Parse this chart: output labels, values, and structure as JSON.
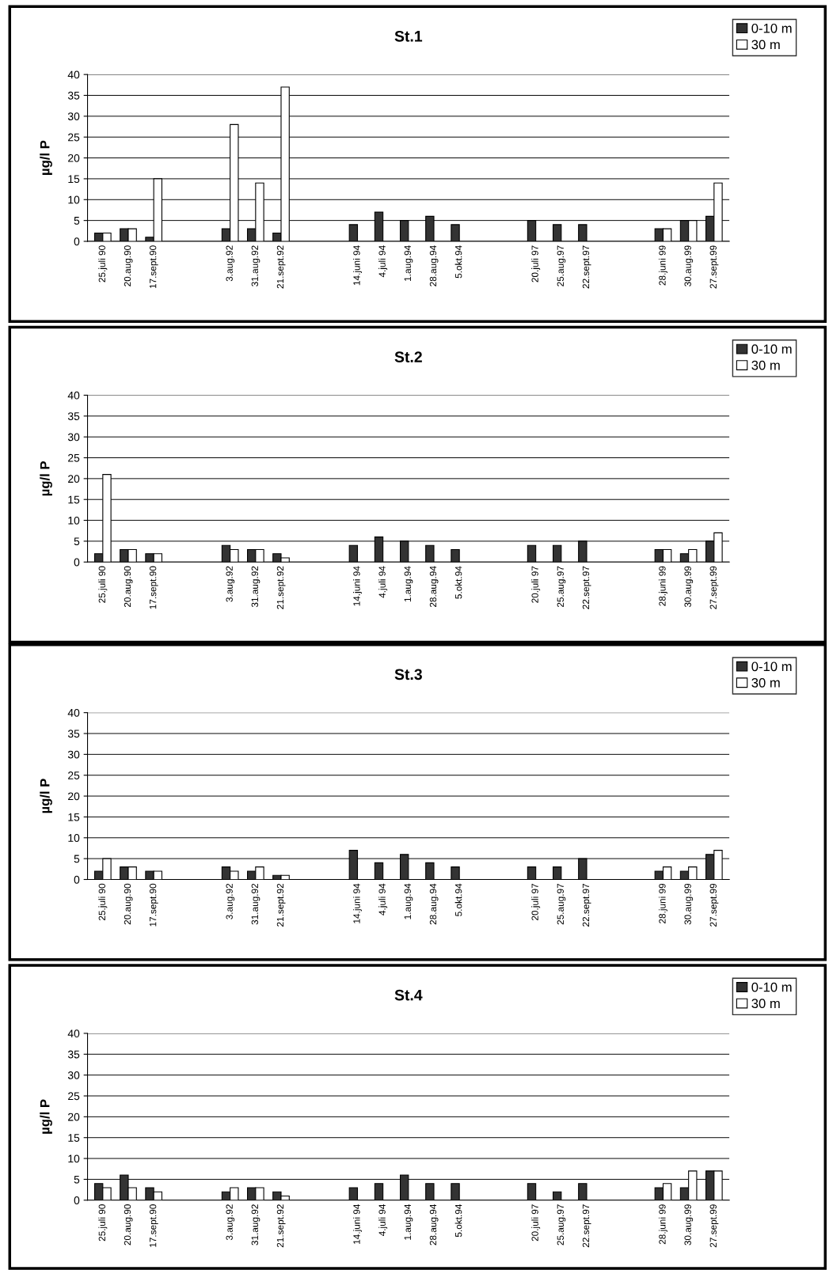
{
  "chart_data": [
    {
      "type": "bar",
      "title": "St.1",
      "ylabel": "µg/l P",
      "categories": [
        "25.juli 90",
        "20.aug.90",
        "17.sept.90",
        null,
        null,
        "3.aug.92",
        "31.aug.92",
        "21.sept.92",
        null,
        null,
        "14.juni 94",
        "4.juli 94",
        "1.aug.94",
        "28.aug.94",
        "5.okt.94",
        null,
        null,
        "20.juli 97",
        "25.aug.97",
        "22.sept.97",
        null,
        null,
        "28.juni 99",
        "30.aug.99",
        "27.sept.99"
      ],
      "ylim": [
        0,
        40
      ],
      "yticks": [
        0,
        5,
        10,
        15,
        20,
        25,
        30,
        35,
        40
      ],
      "grid": "y",
      "legend": "top right",
      "series": [
        {
          "name": "0-10 m",
          "color": "#333333",
          "values": [
            2,
            3,
            1,
            null,
            null,
            3,
            3,
            2,
            null,
            null,
            4,
            7,
            5,
            6,
            4,
            null,
            null,
            5,
            4,
            4,
            null,
            null,
            3,
            5,
            6
          ]
        },
        {
          "name": "30 m",
          "color": "#ffffff",
          "values": [
            2,
            3,
            15,
            null,
            null,
            28,
            14,
            37,
            null,
            null,
            null,
            null,
            null,
            null,
            null,
            null,
            null,
            null,
            null,
            null,
            null,
            null,
            3,
            5,
            14
          ]
        }
      ]
    },
    {
      "type": "bar",
      "title": "St.2",
      "ylabel": "µg/l P",
      "categories": [
        "25.juli 90",
        "20.aug.90",
        "17.sept.90",
        null,
        null,
        "3.aug.92",
        "31.aug.92",
        "21.sept.92",
        null,
        null,
        "14.juni 94",
        "4.juli 94",
        "1.aug.94",
        "28.aug.94",
        "5.okt.94",
        null,
        null,
        "20.juli 97",
        "25.aug.97",
        "22.sept.97",
        null,
        null,
        "28.juni 99",
        "30.aug.99",
        "27.sept.99"
      ],
      "ylim": [
        0,
        40
      ],
      "yticks": [
        0,
        5,
        10,
        15,
        20,
        25,
        30,
        35,
        40
      ],
      "grid": "y",
      "legend": "top right",
      "series": [
        {
          "name": "0-10 m",
          "color": "#333333",
          "values": [
            2,
            3,
            2,
            null,
            null,
            4,
            3,
            2,
            null,
            null,
            4,
            6,
            5,
            4,
            3,
            null,
            null,
            4,
            4,
            5,
            null,
            null,
            3,
            2,
            5
          ]
        },
        {
          "name": "30 m",
          "color": "#ffffff",
          "values": [
            21,
            3,
            2,
            null,
            null,
            3,
            3,
            1,
            null,
            null,
            null,
            null,
            null,
            null,
            null,
            null,
            null,
            null,
            null,
            null,
            null,
            null,
            3,
            3,
            7
          ]
        }
      ]
    },
    {
      "type": "bar",
      "title": "St.3",
      "ylabel": "µg/l P",
      "categories": [
        "25.juli 90",
        "20.aug.90",
        "17.sept.90",
        null,
        null,
        "3.aug.92",
        "31.aug.92",
        "21.sept.92",
        null,
        null,
        "14.juni 94",
        "4.juli 94",
        "1.aug.94",
        "28.aug.94",
        "5.okt.94",
        null,
        null,
        "20.juli 97",
        "25.aug.97",
        "22.sept.97",
        null,
        null,
        "28.juni 99",
        "30.aug.99",
        "27.sept.99"
      ],
      "ylim": [
        0,
        40
      ],
      "yticks": [
        0,
        5,
        10,
        15,
        20,
        25,
        30,
        35,
        40
      ],
      "grid": "y",
      "legend": "top right",
      "series": [
        {
          "name": "0-10 m",
          "color": "#333333",
          "values": [
            2,
            3,
            2,
            null,
            null,
            3,
            2,
            1,
            null,
            null,
            7,
            4,
            6,
            4,
            3,
            null,
            null,
            3,
            3,
            5,
            null,
            null,
            2,
            2,
            6
          ]
        },
        {
          "name": "30 m",
          "color": "#ffffff",
          "values": [
            5,
            3,
            2,
            null,
            null,
            2,
            3,
            1,
            null,
            null,
            null,
            null,
            null,
            null,
            null,
            null,
            null,
            null,
            null,
            null,
            null,
            null,
            3,
            3,
            7
          ]
        }
      ]
    },
    {
      "type": "bar",
      "title": "St.4",
      "ylabel": "µg/l P",
      "categories": [
        "25.juli 90",
        "20.aug.90",
        "17.sept.90",
        null,
        null,
        "3.aug.92",
        "31.aug.92",
        "21.sept.92",
        null,
        null,
        "14.juni 94",
        "4.juli 94",
        "1.aug.94",
        "28.aug.94",
        "5.okt.94",
        null,
        null,
        "20.juli 97",
        "25.aug.97",
        "22.sept.97",
        null,
        null,
        "28.juni 99",
        "30.aug.99",
        "27.sept.99"
      ],
      "ylim": [
        0,
        40
      ],
      "yticks": [
        0,
        5,
        10,
        15,
        20,
        25,
        30,
        35,
        40
      ],
      "grid": "y",
      "legend": "top right",
      "series": [
        {
          "name": "0-10 m",
          "color": "#333333",
          "values": [
            4,
            6,
            3,
            null,
            null,
            2,
            3,
            2,
            null,
            null,
            3,
            4,
            6,
            4,
            4,
            null,
            null,
            4,
            2,
            4,
            null,
            null,
            3,
            3,
            7
          ]
        },
        {
          "name": "30 m",
          "color": "#ffffff",
          "values": [
            3,
            3,
            2,
            null,
            null,
            3,
            3,
            1,
            null,
            null,
            null,
            null,
            null,
            null,
            null,
            null,
            null,
            null,
            null,
            null,
            null,
            null,
            4,
            7,
            7
          ]
        }
      ]
    }
  ]
}
